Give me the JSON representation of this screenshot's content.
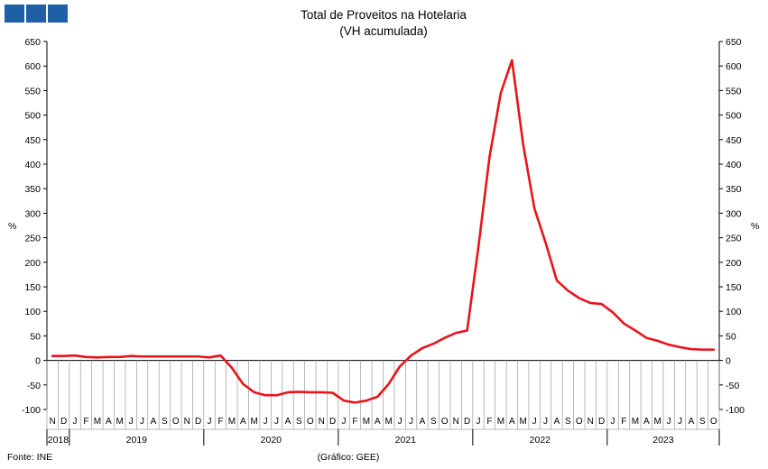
{
  "logo": {
    "name": "GEE squares logo",
    "color": "#1f5fa6"
  },
  "footer": {
    "source": "Fonte: INE",
    "credit": "(Gráfico: GEE)"
  },
  "chart_data": {
    "type": "line",
    "title": "Total de Proveitos na Hotelaria",
    "subtitle": "(VH acumulada)",
    "ylabel": "%",
    "y2label": "%",
    "ylim": [
      -100,
      650
    ],
    "yticks": [
      -100,
      -50,
      0,
      50,
      100,
      150,
      200,
      250,
      300,
      350,
      400,
      450,
      500,
      550,
      600,
      650
    ],
    "grid": false,
    "line_color": "#e8141b",
    "months": [
      "N",
      "D",
      "J",
      "F",
      "M",
      "A",
      "M",
      "J",
      "J",
      "A",
      "S",
      "O",
      "N",
      "D",
      "J",
      "F",
      "M",
      "A",
      "M",
      "J",
      "J",
      "A",
      "S",
      "O",
      "N",
      "D",
      "J",
      "F",
      "M",
      "A",
      "M",
      "J",
      "J",
      "A",
      "S",
      "O",
      "N",
      "D",
      "J",
      "F",
      "M",
      "A",
      "M",
      "J",
      "J",
      "A",
      "S",
      "O",
      "N",
      "D",
      "J",
      "F",
      "M",
      "A",
      "M",
      "J",
      "J",
      "A",
      "S",
      "O"
    ],
    "years": [
      {
        "label": "2018",
        "start": 0,
        "end": 1
      },
      {
        "label": "2019",
        "start": 2,
        "end": 13
      },
      {
        "label": "2020",
        "start": 14,
        "end": 25
      },
      {
        "label": "2021",
        "start": 26,
        "end": 37
      },
      {
        "label": "2022",
        "start": 38,
        "end": 49
      },
      {
        "label": "2023",
        "start": 50,
        "end": 59
      }
    ],
    "series": [
      {
        "values": [
          9,
          9,
          10,
          7,
          6,
          7,
          7,
          9,
          8,
          8,
          8,
          8,
          8,
          8,
          6,
          10,
          -15,
          -48,
          -65,
          -71,
          -71,
          -65,
          -64,
          -65,
          -65,
          -66,
          -82,
          -86,
          -82,
          -74,
          -48,
          -12,
          10,
          25,
          34,
          46,
          56,
          61,
          230,
          415,
          545,
          612,
          440,
          310,
          240,
          163,
          142,
          127,
          117,
          115,
          98,
          75,
          61,
          46,
          40,
          32,
          27,
          23,
          22,
          22
        ]
      }
    ]
  }
}
